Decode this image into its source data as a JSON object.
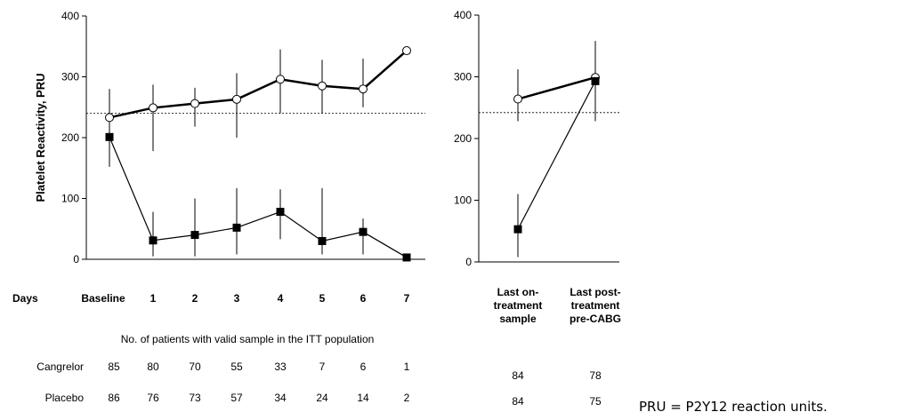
{
  "chart_data": [
    {
      "type": "line",
      "ylabel": "Platelet Reactivity, PRU",
      "ylim": [
        0,
        400
      ],
      "yticks": [
        0,
        100,
        200,
        300,
        400
      ],
      "row_label": "Days",
      "categories": [
        "Baseline",
        "1",
        "2",
        "3",
        "4",
        "5",
        "6",
        "7"
      ],
      "reference_line": 240,
      "series": [
        {
          "marker": "open-circle",
          "color": "#000000",
          "values": [
            233,
            249,
            256,
            263,
            296,
            285,
            280,
            343
          ],
          "err_low": [
            225,
            178,
            218,
            200,
            240,
            240,
            250,
            343
          ],
          "err_high": [
            240,
            287,
            282,
            306,
            345,
            328,
            330,
            343
          ]
        },
        {
          "marker": "filled-square",
          "color": "#000000",
          "values": [
            201,
            31,
            40,
            52,
            78,
            30,
            45,
            3
          ],
          "err_low": [
            152,
            5,
            5,
            8,
            33,
            8,
            8,
            3
          ],
          "err_high": [
            280,
            78,
            100,
            117,
            115,
            117,
            67,
            3
          ]
        }
      ]
    },
    {
      "type": "line",
      "ylim": [
        0,
        400
      ],
      "yticks": [
        0,
        100,
        200,
        300,
        400
      ],
      "categories": [
        "Last on-treatment sample",
        "Last post-treatment pre-CABG"
      ],
      "category_lines": [
        [
          "Last on-",
          "treatment",
          "sample"
        ],
        [
          "Last post-",
          "treatment",
          "pre-CABG"
        ]
      ],
      "reference_line": 242,
      "series": [
        {
          "marker": "open-circle",
          "color": "#000000",
          "values": [
            264,
            299
          ],
          "err_low": [
            228,
            228
          ],
          "err_high": [
            312,
            358
          ]
        },
        {
          "marker": "filled-square",
          "color": "#000000",
          "values": [
            53,
            293
          ],
          "err_low": [
            8,
            228
          ],
          "err_high": [
            110,
            358
          ]
        }
      ]
    }
  ],
  "table": {
    "title": "No. of patients with valid sample in the ITT population",
    "rows": [
      {
        "label": "Cangrelor",
        "counts": [
          "85",
          "80",
          "70",
          "55",
          "33",
          "7",
          "6",
          "1"
        ],
        "right_counts": [
          "84",
          "78"
        ]
      },
      {
        "label": "Placebo",
        "counts": [
          "86",
          "76",
          "73",
          "57",
          "34",
          "24",
          "14",
          "2"
        ],
        "right_counts": [
          "84",
          "75"
        ]
      }
    ]
  },
  "footnote": "PRU = P2Y12 reaction units."
}
